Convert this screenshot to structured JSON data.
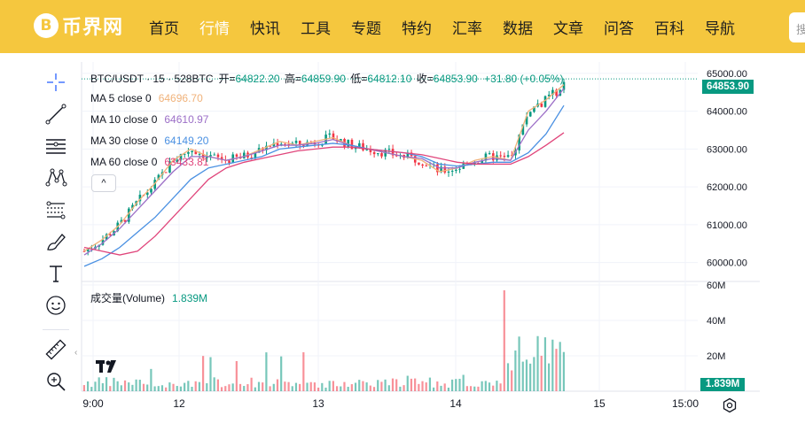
{
  "site": {
    "logo_symbol": "B",
    "logo_text": "币界网",
    "nav": [
      "首页",
      "行情",
      "快讯",
      "工具",
      "专题",
      "特约",
      "汇率",
      "数据",
      "文章",
      "问答",
      "百科",
      "导航"
    ],
    "active_nav": "行情",
    "search_placeholder": "搜"
  },
  "toolbar": {
    "tools": [
      "crosshair-icon",
      "trend-line-icon",
      "horizontal-lines-icon",
      "pattern-icon",
      "fib-icon",
      "brush-icon",
      "text-icon",
      "emoji-icon",
      "ruler-icon",
      "zoom-icon"
    ]
  },
  "chart": {
    "symbol": "BTC/USDT · 15 · 528BTC",
    "ohlc": {
      "open_label": "开=",
      "open": "64822.20",
      "high_label": "高=",
      "high": "64859.90",
      "low_label": "低=",
      "low": "64812.10",
      "close_label": "收=",
      "close": "64853.90",
      "change": "+31.80 (+0.05%)"
    },
    "ma": [
      {
        "label": "MA 5 close 0",
        "value": "64696.70",
        "color": "#f0b27a"
      },
      {
        "label": "MA 10 close 0",
        "value": "64610.97",
        "color": "#9c6fc7"
      },
      {
        "label": "MA 30 close 0",
        "value": "64149.20",
        "color": "#4a90e2"
      },
      {
        "label": "MA 60 close 0",
        "value": "63433.81",
        "color": "#e0457b"
      }
    ],
    "collapse_label": "^",
    "volume_label": "成交量(Volume)",
    "volume_value": "1.839M",
    "price_axis": [
      "65000.00",
      "64000.00",
      "63000.00",
      "62000.00",
      "61000.00",
      "60000.00"
    ],
    "volume_axis": [
      "60M",
      "40M",
      "20M"
    ],
    "time_axis": [
      "9:00",
      "12",
      "13",
      "14",
      "15",
      "15:00"
    ],
    "last_price": "64853.90",
    "last_volume": "1.839M",
    "tv_logo_text": "17",
    "colors": {
      "up": "#089981",
      "down": "#f23645",
      "grid": "#f0f3fa"
    }
  },
  "chart_data": {
    "type": "line",
    "title": "BTC/USDT · 15 · 528BTC",
    "xlabel": "",
    "ylabel": "",
    "x_ticks": [
      "9:00",
      "12",
      "13",
      "14",
      "15",
      "15:00"
    ],
    "ylim": [
      59500,
      65300
    ],
    "series": [
      {
        "name": "MA 5 close 0",
        "values": [
          60300,
          60600,
          61000,
          61600,
          62100,
          62700,
          63000,
          62800,
          62700,
          62800,
          63000,
          63200,
          63100,
          63200,
          63300,
          63100,
          63000,
          62900,
          62800,
          62700,
          62400,
          62500,
          62700,
          62800,
          62700,
          64000,
          64300,
          64700
        ]
      },
      {
        "name": "MA 10 close 0",
        "values": [
          60200,
          60500,
          60900,
          61400,
          61900,
          62400,
          62800,
          62800,
          62700,
          62800,
          62950,
          63100,
          63100,
          63150,
          63250,
          63100,
          63000,
          62900,
          62800,
          62750,
          62500,
          62500,
          62650,
          62750,
          62700,
          63500,
          64000,
          64600
        ]
      },
      {
        "name": "MA 30 close 0",
        "values": [
          59900,
          60100,
          60400,
          60800,
          61200,
          61700,
          62200,
          62500,
          62600,
          62700,
          62800,
          63000,
          63050,
          63100,
          63150,
          63100,
          63000,
          62950,
          62900,
          62800,
          62600,
          62550,
          62600,
          62650,
          62650,
          62900,
          63400,
          64150
        ]
      },
      {
        "name": "MA 60 close 0",
        "values": [
          60400,
          60300,
          60200,
          60300,
          60700,
          61200,
          61700,
          62200,
          62500,
          62650,
          62750,
          62850,
          62950,
          63000,
          63050,
          63050,
          63000,
          62950,
          62900,
          62850,
          62750,
          62650,
          62600,
          62600,
          62600,
          62800,
          63100,
          63430
        ]
      }
    ],
    "volume_series": {
      "name": "成交量(Volume)",
      "max": 60
    }
  }
}
